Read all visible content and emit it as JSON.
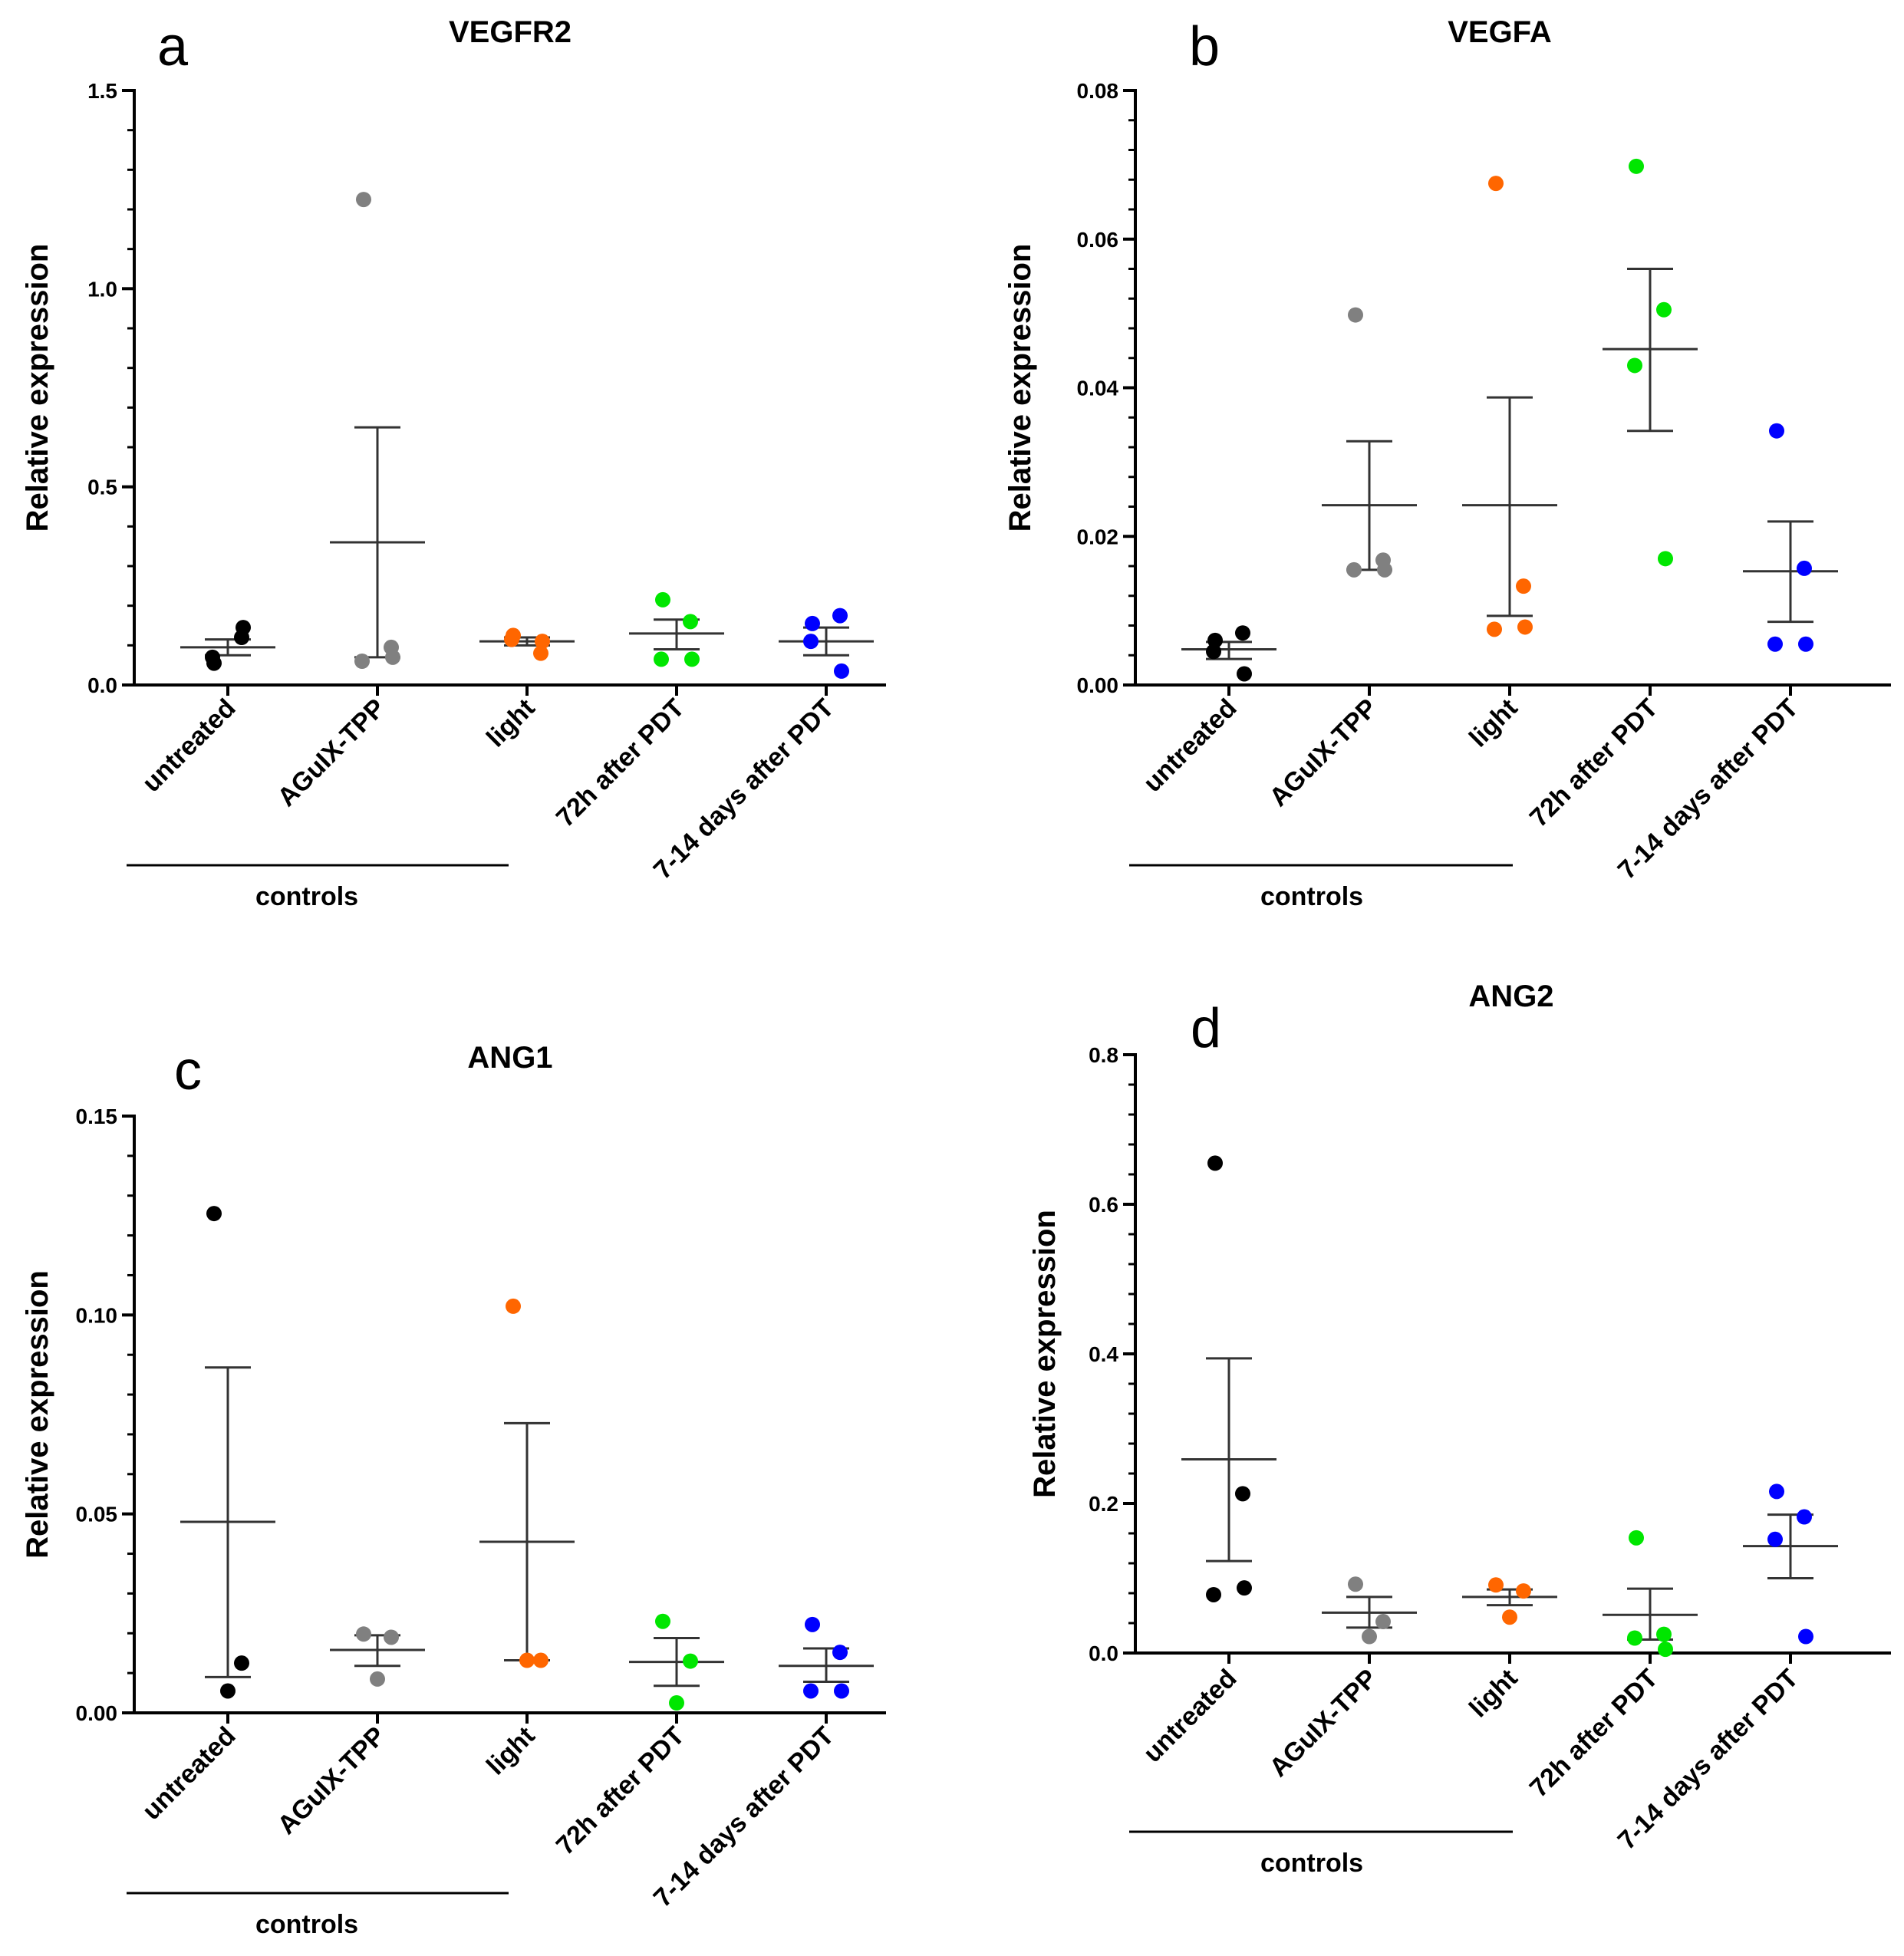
{
  "chart_data": [
    {
      "type": "scatter",
      "panel": "a",
      "title": "VEGFR2",
      "ylabel": "Relative expression",
      "ylim": [
        0,
        1.5
      ],
      "yticks": [
        "0.0",
        "0.5",
        "1.0",
        "1.5"
      ],
      "categories": [
        "untreated",
        "AGuIX-TPP",
        "light",
        "72h after PDT",
        "7-14 days after PDT"
      ],
      "group_label": "controls",
      "series": [
        {
          "points": [
            0.055,
            0.12,
            0.07,
            0.145
          ],
          "mean": 0.095,
          "err": [
            0.075,
            0.115
          ],
          "color": "#000000"
        },
        {
          "points": [
            1.225,
            0.095,
            0.06,
            0.07
          ],
          "mean": 0.36,
          "err": [
            0.07,
            0.65
          ],
          "color": "#808080"
        },
        {
          "points": [
            0.125,
            0.08,
            0.115,
            0.11
          ],
          "mean": 0.11,
          "err": [
            0.1,
            0.12
          ],
          "color": "#ff6600"
        },
        {
          "points": [
            0.215,
            0.16,
            0.065,
            0.065
          ],
          "mean": 0.13,
          "err": [
            0.09,
            0.165
          ],
          "color": "#00e600"
        },
        {
          "points": [
            0.155,
            0.175,
            0.11,
            0.035
          ],
          "mean": 0.11,
          "err": [
            0.075,
            0.145
          ],
          "color": "#0000ff"
        }
      ]
    },
    {
      "type": "scatter",
      "panel": "b",
      "title": "VEGFA",
      "ylabel": "Relative expression",
      "ylim": [
        0,
        0.08
      ],
      "yticks": [
        "0.00",
        "0.02",
        "0.04",
        "0.06",
        "0.08"
      ],
      "categories": [
        "untreated",
        "AGuIX-TPP",
        "light",
        "72h after PDT",
        "7-14 days after PDT"
      ],
      "group_label": "controls",
      "series": [
        {
          "points": [
            0.006,
            0.007,
            0.0045,
            0.0015
          ],
          "mean": 0.0048,
          "err": [
            0.0035,
            0.0058
          ],
          "color": "#000000"
        },
        {
          "points": [
            0.0498,
            0.0168,
            0.0155,
            0.0155
          ],
          "mean": 0.0242,
          "err": [
            0.0155,
            0.0328
          ],
          "color": "#808080"
        },
        {
          "points": [
            0.0675,
            0.0133,
            0.0075,
            0.0078
          ],
          "mean": 0.0242,
          "err": [
            0.0093,
            0.0387
          ],
          "color": "#ff6600"
        },
        {
          "points": [
            0.0698,
            0.0505,
            0.043,
            0.017
          ],
          "mean": 0.0452,
          "err": [
            0.0342,
            0.056
          ],
          "color": "#00e600"
        },
        {
          "points": [
            0.0342,
            0.0157,
            0.0055,
            0.0055
          ],
          "mean": 0.0153,
          "err": [
            0.0085,
            0.022
          ],
          "color": "#0000ff"
        }
      ]
    },
    {
      "type": "scatter",
      "panel": "c",
      "title": "ANG1",
      "ylabel": "Relative expression",
      "ylim": [
        0,
        0.15
      ],
      "yticks": [
        "0.00",
        "0.05",
        "0.10",
        "0.15"
      ],
      "categories": [
        "untreated",
        "AGuIX-TPP",
        "light",
        "72h after PDT",
        "7-14 days after PDT"
      ],
      "group_label": "controls",
      "series": [
        {
          "points": [
            0.1255,
            0.0125,
            0.0055
          ],
          "mean": 0.048,
          "err": [
            0.009,
            0.0868
          ],
          "color": "#000000"
        },
        {
          "points": [
            0.0198,
            0.019,
            0.0085
          ],
          "mean": 0.0158,
          "err": [
            0.0118,
            0.0195
          ],
          "color": "#808080"
        },
        {
          "points": [
            0.1022,
            0.0132,
            0.0132
          ],
          "mean": 0.043,
          "err": [
            0.0132,
            0.0728
          ],
          "color": "#ff6600"
        },
        {
          "points": [
            0.023,
            0.013,
            0.0025
          ],
          "mean": 0.0128,
          "err": [
            0.0068,
            0.0188
          ],
          "color": "#00e600"
        },
        {
          "points": [
            0.0222,
            0.0152,
            0.0055,
            0.0055
          ],
          "mean": 0.0118,
          "err": [
            0.0078,
            0.0162
          ],
          "color": "#0000ff"
        }
      ]
    },
    {
      "type": "scatter",
      "panel": "d",
      "title": "ANG2",
      "ylabel": "Relative expression",
      "ylim": [
        0,
        0.8
      ],
      "yticks": [
        "0.0",
        "0.2",
        "0.4",
        "0.6",
        "0.8"
      ],
      "categories": [
        "untreated",
        "AGuIX-TPP",
        "light",
        "72h after PDT",
        "7-14 days after PDT"
      ],
      "group_label": "controls",
      "series": [
        {
          "points": [
            0.655,
            0.213,
            0.078,
            0.087
          ],
          "mean": 0.259,
          "err": [
            0.123,
            0.394
          ],
          "color": "#000000"
        },
        {
          "points": [
            0.092,
            0.042,
            0.022
          ],
          "mean": 0.054,
          "err": [
            0.034,
            0.075
          ],
          "color": "#808080"
        },
        {
          "points": [
            0.091,
            0.083,
            0.048
          ],
          "mean": 0.075,
          "err": [
            0.064,
            0.085
          ],
          "color": "#ff6600"
        },
        {
          "points": [
            0.154,
            0.025,
            0.02,
            0.005
          ],
          "mean": 0.051,
          "err": [
            0.018,
            0.086
          ],
          "color": "#00e600"
        },
        {
          "points": [
            0.216,
            0.182,
            0.152,
            0.022
          ],
          "mean": 0.143,
          "err": [
            0.1,
            0.185
          ],
          "color": "#0000ff"
        }
      ]
    }
  ]
}
